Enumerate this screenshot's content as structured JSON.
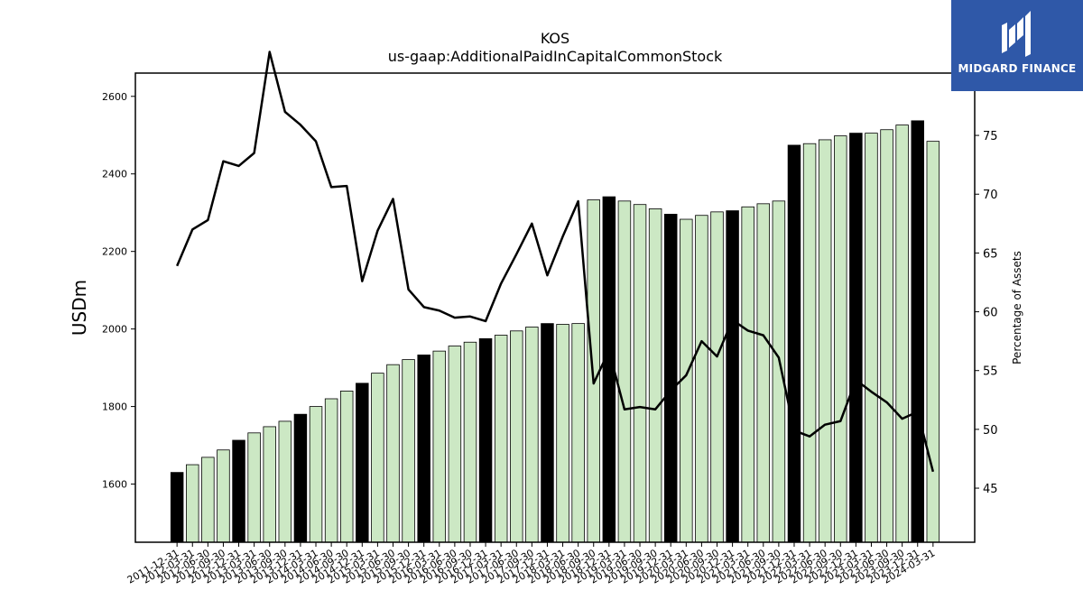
{
  "brand": {
    "name": "MIDGARD FINANCE",
    "icon": "midgard-logo-icon",
    "color": "#2f58a8"
  },
  "chart_data": {
    "type": "bar",
    "title": "KOS",
    "subtitle": "us-gaap:AdditionalPaidInCapitalCommonStock",
    "ylabel": "USDm",
    "y2label": "Percentage of Assets",
    "ylim": [
      1450,
      2660
    ],
    "y2lim": [
      40.4,
      80.3
    ],
    "yticks": [
      1600,
      1800,
      2000,
      2200,
      2400,
      2600
    ],
    "y2ticks": [
      45,
      50,
      55,
      60,
      65,
      70,
      75
    ],
    "grid": false,
    "categories": [
      "2011-12-31",
      "2012-03-31",
      "2012-06-30",
      "2012-09-30",
      "2012-12-31",
      "2013-03-31",
      "2013-06-30",
      "2013-09-30",
      "2013-12-31",
      "2014-03-31",
      "2014-06-30",
      "2014-09-30",
      "2014-12-31",
      "2015-03-31",
      "2015-06-30",
      "2015-09-30",
      "2015-12-31",
      "2016-03-31",
      "2016-06-30",
      "2016-09-30",
      "2016-12-31",
      "2017-03-31",
      "2017-06-30",
      "2017-09-30",
      "2017-12-31",
      "2018-03-31",
      "2018-06-30",
      "2018-09-30",
      "2018-12-31",
      "2019-03-31",
      "2019-06-30",
      "2019-09-30",
      "2019-12-31",
      "2020-03-31",
      "2020-06-30",
      "2020-09-30",
      "2020-12-31",
      "2021-03-31",
      "2021-06-30",
      "2021-09-30",
      "2021-12-31",
      "2022-03-31",
      "2022-06-30",
      "2022-09-30",
      "2022-12-31",
      "2023-03-31",
      "2023-06-30",
      "2023-09-30",
      "2023-12-31",
      "2024-03-31"
    ],
    "series": [
      {
        "type": "bar",
        "axis": "left",
        "values": [
          1630,
          1650,
          1669,
          1688,
          1713,
          1732,
          1748,
          1762,
          1780,
          1800,
          1820,
          1840,
          1860,
          1886,
          1908,
          1921,
          1933,
          1943,
          1956,
          1966,
          1975,
          1984,
          1995,
          2005,
          2014,
          2012,
          2014,
          2333,
          2341,
          2330,
          2321,
          2310,
          2296,
          2283,
          2293,
          2302,
          2305,
          2315,
          2323,
          2330,
          2474,
          2478,
          2488,
          2498,
          2505,
          2505,
          2514,
          2526,
          2537,
          2484
        ],
        "colors": {
          "year_end": "#000000",
          "quarter": "#cce8c4"
        }
      },
      {
        "type": "line",
        "axis": "right",
        "values": [
          63.9,
          67.0,
          67.8,
          72.8,
          72.4,
          73.5,
          82.1,
          77.0,
          75.9,
          74.5,
          70.6,
          70.7,
          62.6,
          66.9,
          69.6,
          61.9,
          60.4,
          60.1,
          59.5,
          59.6,
          59.2,
          62.4,
          64.9,
          67.5,
          63.1,
          66.4,
          69.4,
          53.9,
          56.7,
          51.7,
          51.9,
          51.7,
          53.3,
          54.6,
          57.5,
          56.2,
          59.3,
          58.4,
          58.0,
          56.1,
          49.9,
          49.4,
          50.4,
          50.7,
          54.2,
          53.2,
          52.3,
          50.9,
          51.5,
          46.4
        ],
        "color": "#000000"
      }
    ]
  }
}
